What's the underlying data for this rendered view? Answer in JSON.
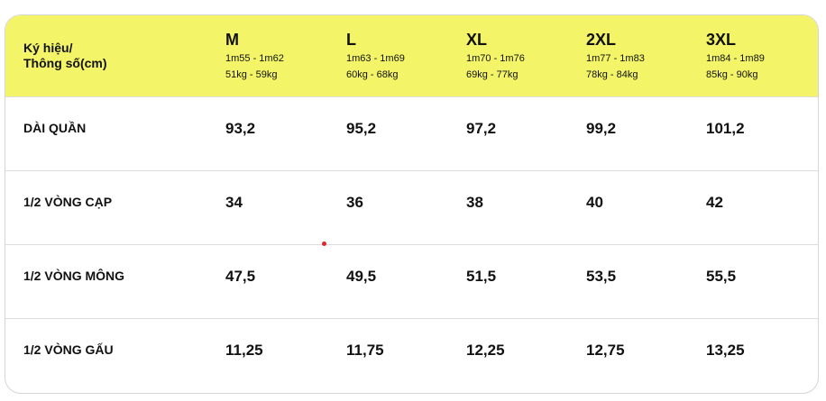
{
  "table": {
    "header_label_line1": "Ký hiệu/",
    "header_label_line2": "Thông số(cm)",
    "sizes": [
      {
        "name": "M",
        "height": "1m55 - 1m62",
        "weight": "51kg - 59kg"
      },
      {
        "name": "L",
        "height": "1m63 - 1m69",
        "weight": "60kg - 68kg"
      },
      {
        "name": "XL",
        "height": "1m70 - 1m76",
        "weight": "69kg - 77kg"
      },
      {
        "name": "2XL",
        "height": "1m77 - 1m83",
        "weight": "78kg - 84kg"
      },
      {
        "name": "3XL",
        "height": "1m84 - 1m89",
        "weight": "85kg - 90kg"
      }
    ],
    "rows": [
      {
        "label": "DÀI QUẦN",
        "values": [
          "93,2",
          "95,2",
          "97,2",
          "99,2",
          "101,2"
        ]
      },
      {
        "label": "1/2 VÒNG CẠP",
        "values": [
          "34",
          "36",
          "38",
          "40",
          "42"
        ]
      },
      {
        "label": "1/2 VÒNG MÔNG",
        "values": [
          "47,5",
          "49,5",
          "51,5",
          "53,5",
          "55,5"
        ]
      },
      {
        "label": "1/2 VÒNG GẤU",
        "values": [
          "11,25",
          "11,75",
          "12,25",
          "12,75",
          "13,25"
        ]
      }
    ]
  },
  "colors": {
    "header_background": "#f3f467",
    "border": "#d6d6d6",
    "text": "#111111",
    "marker": "#e0242c"
  }
}
